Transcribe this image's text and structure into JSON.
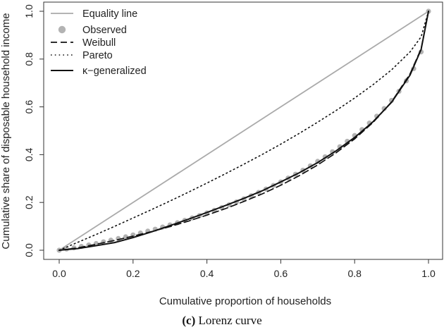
{
  "caption": {
    "label": "(c)",
    "text": "Lorenz curve"
  },
  "chart_data": {
    "type": "line",
    "xlabel": "Cumulative proportion of households",
    "ylabel": "Cumulative share of disposable household income",
    "xlim": [
      0,
      1
    ],
    "ylim": [
      0,
      1
    ],
    "xticks": [
      "0.0",
      "0.2",
      "0.4",
      "0.6",
      "0.8",
      "1.0"
    ],
    "yticks": [
      "0.0",
      "0.2",
      "0.4",
      "0.6",
      "0.8",
      "1.0"
    ],
    "grid": false,
    "legend_position": "top-left",
    "colors": {
      "equality": "#aaaaaa",
      "observed": "#b3b3b3",
      "model": "#111111"
    },
    "series": [
      {
        "name": "Equality line",
        "style": "solid-gray",
        "x": [
          0,
          1
        ],
        "y": [
          0,
          1
        ]
      },
      {
        "name": "Observed",
        "style": "points-gray",
        "x": [
          0,
          0.02,
          0.04,
          0.06,
          0.08,
          0.1,
          0.12,
          0.14,
          0.16,
          0.18,
          0.2,
          0.22,
          0.24,
          0.26,
          0.28,
          0.3,
          0.32,
          0.34,
          0.36,
          0.38,
          0.4,
          0.42,
          0.44,
          0.46,
          0.48,
          0.5,
          0.52,
          0.54,
          0.56,
          0.58,
          0.6,
          0.62,
          0.64,
          0.66,
          0.68,
          0.7,
          0.72,
          0.74,
          0.76,
          0.78,
          0.8,
          0.82,
          0.84,
          0.86,
          0.88,
          0.9,
          0.92,
          0.94,
          0.96,
          0.98,
          1.0
        ],
        "y": [
          0,
          0.005,
          0.01,
          0.016,
          0.022,
          0.028,
          0.035,
          0.042,
          0.049,
          0.056,
          0.064,
          0.072,
          0.08,
          0.088,
          0.097,
          0.106,
          0.115,
          0.125,
          0.135,
          0.145,
          0.156,
          0.167,
          0.178,
          0.19,
          0.202,
          0.215,
          0.228,
          0.242,
          0.256,
          0.271,
          0.286,
          0.302,
          0.318,
          0.335,
          0.353,
          0.372,
          0.391,
          0.412,
          0.433,
          0.456,
          0.48,
          0.505,
          0.532,
          0.561,
          0.593,
          0.627,
          0.665,
          0.709,
          0.76,
          0.83,
          1.0
        ]
      },
      {
        "name": "Weibull",
        "style": "dashed-black",
        "x": [
          0,
          0.05,
          0.1,
          0.15,
          0.2,
          0.25,
          0.3,
          0.35,
          0.4,
          0.45,
          0.5,
          0.55,
          0.6,
          0.65,
          0.7,
          0.75,
          0.8,
          0.85,
          0.9,
          0.95,
          0.98,
          1.0
        ],
        "y": [
          0,
          0.01,
          0.025,
          0.041,
          0.059,
          0.078,
          0.099,
          0.122,
          0.147,
          0.174,
          0.204,
          0.236,
          0.272,
          0.312,
          0.357,
          0.408,
          0.466,
          0.535,
          0.621,
          0.738,
          0.843,
          1.0
        ]
      },
      {
        "name": "Pareto",
        "style": "dotted-black",
        "x": [
          0,
          0.05,
          0.1,
          0.15,
          0.2,
          0.25,
          0.3,
          0.35,
          0.4,
          0.45,
          0.5,
          0.55,
          0.6,
          0.65,
          0.7,
          0.75,
          0.8,
          0.85,
          0.9,
          0.95,
          0.98,
          1.0
        ],
        "y": [
          0,
          0.033,
          0.066,
          0.1,
          0.135,
          0.17,
          0.206,
          0.243,
          0.281,
          0.32,
          0.36,
          0.401,
          0.444,
          0.489,
          0.536,
          0.585,
          0.637,
          0.693,
          0.755,
          0.83,
          0.893,
          1.0
        ]
      },
      {
        "name": "κ−generalized",
        "style": "solid-black",
        "x": [
          0,
          0.05,
          0.1,
          0.15,
          0.2,
          0.25,
          0.3,
          0.35,
          0.4,
          0.45,
          0.5,
          0.55,
          0.6,
          0.65,
          0.7,
          0.75,
          0.8,
          0.85,
          0.9,
          0.95,
          0.98,
          1.0
        ],
        "y": [
          0,
          0.007,
          0.019,
          0.032,
          0.053,
          0.077,
          0.103,
          0.13,
          0.158,
          0.187,
          0.217,
          0.249,
          0.286,
          0.324,
          0.367,
          0.416,
          0.472,
          0.538,
          0.619,
          0.733,
          0.84,
          1.0
        ]
      }
    ]
  }
}
